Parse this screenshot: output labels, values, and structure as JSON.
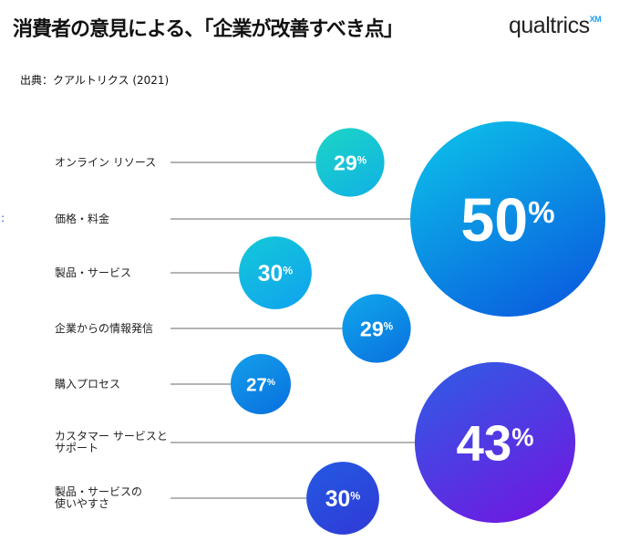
{
  "header": {
    "title": "消費者の意見による、「企業が改善すべき点」",
    "logo": "qualtrics",
    "logo_sup": "XM",
    "source": "出典：クアルトリクス (2021)"
  },
  "side_marker": ":",
  "chart_data": {
    "type": "bubble",
    "title": "消費者の意見による、「企業が改善すべき点」",
    "categories": [
      [
        "オンライン リソース"
      ],
      [
        "価格・料金"
      ],
      [
        "製品・サービス"
      ],
      [
        "企業からの情報発信"
      ],
      [
        "購入プロセス"
      ],
      [
        "カスタマー サービスと",
        "サポート"
      ],
      [
        "製品・サービスの",
        "使いやすさ"
      ]
    ],
    "values": [
      29,
      50,
      30,
      29,
      27,
      43,
      30
    ],
    "value_labels": [
      "29%",
      "50%",
      "30%",
      "29%",
      "27%",
      "43%",
      "30%"
    ],
    "unit": "%",
    "colors": [
      [
        "#1cd6c4",
        "#12b6e0"
      ],
      [
        "#0cc6ea",
        "#0a64df"
      ],
      [
        "#14c8d8",
        "#10a8ec"
      ],
      [
        "#10a8ec",
        "#0a78e0"
      ],
      [
        "#14a0ea",
        "#0a76e0"
      ],
      [
        "#2e5ee4",
        "#6a1ee2"
      ],
      [
        "#245ae2",
        "#2e3ed8"
      ]
    ]
  }
}
